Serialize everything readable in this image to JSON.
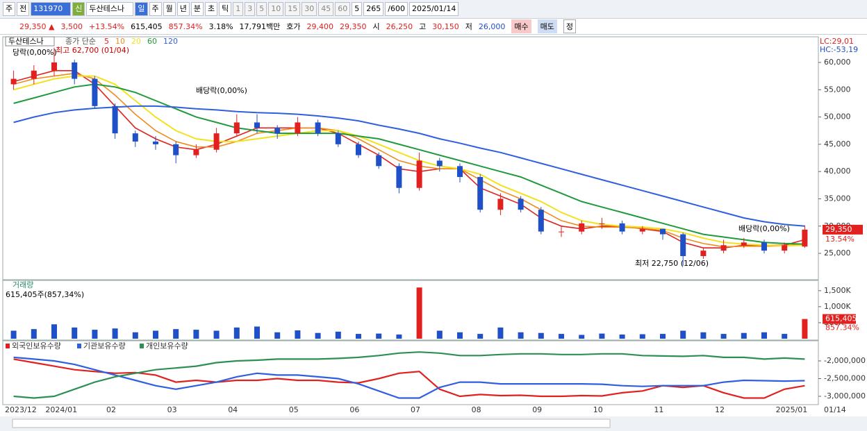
{
  "toolbar": [
    "주",
    "전",
    "131970",
    "신",
    "두산테스나",
    "일",
    "주",
    "월",
    "년",
    "분",
    "초",
    "틱",
    "1",
    "3",
    "5",
    "10",
    "15",
    "30",
    "45",
    "60",
    "5",
    "265",
    "/600",
    "2025/01/14"
  ],
  "info_bar": [
    "29,350 ▲",
    "3,500",
    "+13.54%",
    "615,405",
    "857.34%",
    "3.18%",
    "17,791백만",
    "호가",
    "29,400",
    "29,350",
    "시",
    "26,250",
    "고",
    "30,150",
    "저",
    "26,000",
    "매수",
    "매도",
    "정"
  ],
  "chart_data": [
    {
      "type": "candlestick",
      "title": "두산테스나",
      "legend_label": "종가 단순",
      "categories": [
        "2023/12",
        null,
        "2024/01",
        null,
        null,
        "02",
        null,
        null,
        "03",
        null,
        null,
        "04",
        null,
        null,
        "05",
        null,
        null,
        "06",
        null,
        null,
        "07",
        null,
        null,
        "08",
        null,
        null,
        "09",
        null,
        null,
        "10",
        null,
        null,
        "11",
        null,
        null,
        "12",
        null,
        null,
        "2025/01",
        null
      ],
      "x_end_label": "01/14",
      "open": [
        56000,
        57000,
        58500,
        60000,
        57000,
        52000,
        47000,
        45500,
        45000,
        43000,
        44000,
        47000,
        49000,
        48000,
        47000,
        49000,
        47000,
        45000,
        43000,
        41000,
        37000,
        42000,
        41000,
        39000,
        33000,
        35000,
        33000,
        29000,
        29000,
        30500,
        30500,
        29000,
        29500,
        28500,
        24500,
        25500,
        26500,
        27000,
        25500,
        26250
      ],
      "high": [
        58500,
        59500,
        62700,
        60500,
        57500,
        52500,
        47500,
        46500,
        45500,
        45000,
        48000,
        50500,
        50500,
        48500,
        50000,
        49500,
        47500,
        45500,
        43500,
        41500,
        43500,
        42500,
        41500,
        39500,
        36000,
        35500,
        33500,
        30000,
        31000,
        31500,
        31000,
        30000,
        29500,
        28800,
        26000,
        27500,
        27800,
        27500,
        27000,
        30150
      ],
      "low": [
        55000,
        56000,
        57500,
        56000,
        51500,
        46000,
        44500,
        44000,
        41500,
        42500,
        43500,
        46500,
        47000,
        46000,
        46500,
        46500,
        44500,
        42500,
        40500,
        36000,
        36500,
        40000,
        38000,
        32500,
        32000,
        32500,
        28500,
        28000,
        28500,
        29500,
        28500,
        28500,
        27500,
        22750,
        24000,
        25000,
        26000,
        25000,
        25000,
        26000
      ],
      "close": [
        57000,
        58500,
        60000,
        57000,
        52000,
        47000,
        45500,
        45000,
        43000,
        44000,
        47000,
        49000,
        48000,
        47000,
        49000,
        47000,
        45000,
        43000,
        41000,
        37000,
        42000,
        41000,
        39000,
        33000,
        35000,
        33000,
        29000,
        29000,
        30500,
        30500,
        29000,
        29500,
        28500,
        24500,
        25500,
        26500,
        27000,
        25500,
        26500,
        29350
      ],
      "up_color": "#e0211f",
      "down_color": "#1f50c8",
      "series": [
        {
          "name": "5",
          "color": "#e0211f",
          "values": [
            56500,
            57500,
            58500,
            58500,
            56000,
            52000,
            48000,
            46000,
            44500,
            44000,
            45000,
            46500,
            48000,
            48000,
            48000,
            48000,
            47000,
            45000,
            43000,
            40500,
            40000,
            40500,
            40500,
            37000,
            35500,
            34000,
            31500,
            30000,
            29500,
            30000,
            30000,
            29500,
            29000,
            27000,
            26000,
            26000,
            26500,
            26500,
            26500,
            27500
          ]
        },
        {
          "name": "10",
          "color": "#f08a1c",
          "values": [
            56000,
            57000,
            57500,
            58000,
            57000,
            54000,
            50500,
            47500,
            45500,
            44500,
            44500,
            45500,
            47000,
            47500,
            48000,
            48000,
            47500,
            46000,
            44000,
            42000,
            41000,
            40500,
            40500,
            38500,
            36500,
            35000,
            33000,
            31000,
            30000,
            29800,
            29800,
            29600,
            29200,
            27800,
            26800,
            26200,
            26300,
            26300,
            26400,
            26800
          ]
        },
        {
          "name": "20",
          "color": "#f2e21e",
          "values": [
            55000,
            56000,
            57000,
            57500,
            57500,
            56000,
            53000,
            50000,
            47500,
            46000,
            45500,
            45500,
            46000,
            46500,
            47000,
            47500,
            47500,
            46500,
            45000,
            43500,
            42000,
            41000,
            40500,
            39500,
            37500,
            36000,
            34500,
            32500,
            31000,
            30300,
            30000,
            29800,
            29500,
            28800,
            27800,
            27000,
            26700,
            26500,
            26400,
            26500
          ]
        },
        {
          "name": "60",
          "color": "#1f9a3c",
          "values": [
            52500,
            53500,
            54500,
            55500,
            56000,
            55500,
            54500,
            53000,
            51500,
            50000,
            49000,
            48000,
            47500,
            47000,
            47000,
            47000,
            47000,
            46500,
            46000,
            45000,
            44000,
            43000,
            42000,
            41000,
            40000,
            39000,
            37500,
            36000,
            34500,
            33500,
            32500,
            31500,
            30500,
            29500,
            28500,
            28000,
            27500,
            27000,
            26800,
            26700
          ]
        },
        {
          "name": "120",
          "color": "#2f5fe0",
          "values": [
            49000,
            50000,
            50800,
            51300,
            51600,
            51800,
            52000,
            52000,
            51800,
            51500,
            51300,
            51000,
            50800,
            50700,
            50500,
            50200,
            49800,
            49300,
            48500,
            47800,
            47000,
            46000,
            45200,
            44300,
            43500,
            42500,
            41500,
            40500,
            39500,
            38500,
            37500,
            36500,
            35500,
            34500,
            33500,
            32500,
            31500,
            30800,
            30300,
            30000
          ]
        }
      ],
      "ylim": [
        20300,
        64450
      ],
      "yticks": [
        {
          "value": 25000,
          "label": "25,000"
        },
        {
          "value": 30000,
          "label": "30,000"
        },
        {
          "value": 35000,
          "label": "35,000"
        },
        {
          "value": 40000,
          "label": "40,000"
        },
        {
          "value": 45000,
          "label": "45,000"
        },
        {
          "value": 50000,
          "label": "50,000"
        },
        {
          "value": 55000,
          "label": "55,000"
        },
        {
          "value": 60000,
          "label": "60,000"
        }
      ],
      "annotations": [
        "당락(0,00%)",
        "최고 62,700 (01/04)",
        "배당락(0,00%)",
        "배당락(0,00%)",
        "최저 22,750 (12/06)"
      ],
      "lc_label": "LC:29,01",
      "hc_label": "HC:-53,19",
      "price_tag": "29,350",
      "change_tag": "13.54%"
    },
    {
      "type": "bar",
      "title": "거래량",
      "subtitle": "615,405주(857,34%)",
      "color": "#1f50c8",
      "highlight_color": "#e0211f",
      "values": [
        250000,
        300000,
        450000,
        350000,
        280000,
        320000,
        200000,
        250000,
        300000,
        280000,
        250000,
        350000,
        380000,
        200000,
        260000,
        180000,
        220000,
        150000,
        160000,
        130000,
        1600000,
        250000,
        200000,
        150000,
        350000,
        200000,
        180000,
        150000,
        120000,
        160000,
        130000,
        140000,
        150000,
        250000,
        200000,
        150000,
        180000,
        200000,
        150000,
        615405
      ],
      "ylim": [
        0,
        1800000
      ],
      "yticks": [
        {
          "value": 500000,
          "label": "500K"
        },
        {
          "value": 1000000,
          "label": "1,000K"
        },
        {
          "value": 1500000,
          "label": "1,500K"
        }
      ],
      "value_tag": "615,405",
      "change_tag": "857.34%"
    },
    {
      "type": "line",
      "series": [
        {
          "name": "외국인보유수량",
          "color": "#e0211f",
          "values": [
            -1950000,
            -2050000,
            -2150000,
            -2250000,
            -2300000,
            -2350000,
            -2330000,
            -2400000,
            -2600000,
            -2550000,
            -2600000,
            -2550000,
            -2550000,
            -2500000,
            -2550000,
            -2550000,
            -2600000,
            -2620000,
            -2500000,
            -2350000,
            -2300000,
            -2800000,
            -3000000,
            -2950000,
            -2980000,
            -2970000,
            -3000000,
            -3000000,
            -2980000,
            -2990000,
            -2900000,
            -2850000,
            -2700000,
            -2750000,
            -2700000,
            -2900000,
            -3050000,
            -3050000,
            -2800000,
            -2700000
          ]
        },
        {
          "name": "기관보유수량",
          "color": "#2f5fe0",
          "values": [
            -1900000,
            -1950000,
            -2000000,
            -2100000,
            -2250000,
            -2400000,
            -2550000,
            -2700000,
            -2800000,
            -2700000,
            -2600000,
            -2450000,
            -2350000,
            -2400000,
            -2400000,
            -2450000,
            -2500000,
            -2650000,
            -2850000,
            -3050000,
            -3050000,
            -2750000,
            -2600000,
            -2600000,
            -2650000,
            -2650000,
            -2650000,
            -2650000,
            -2650000,
            -2660000,
            -2700000,
            -2720000,
            -2700000,
            -2700000,
            -2700000,
            -2600000,
            -2550000,
            -2560000,
            -2570000,
            -2560000
          ]
        },
        {
          "name": "개인보유수량",
          "color": "#2e8f55",
          "values": [
            -3000000,
            -3050000,
            -3000000,
            -2800000,
            -2600000,
            -2450000,
            -2350000,
            -2250000,
            -2200000,
            -2150000,
            -2050000,
            -2000000,
            -1980000,
            -1950000,
            -1950000,
            -1950000,
            -1930000,
            -1900000,
            -1850000,
            -1780000,
            -1750000,
            -1780000,
            -1850000,
            -1850000,
            -1820000,
            -1800000,
            -1800000,
            -1820000,
            -1820000,
            -1800000,
            -1800000,
            -1850000,
            -1860000,
            -1870000,
            -1850000,
            -1900000,
            -1900000,
            -1950000,
            -1920000,
            -1950000
          ]
        }
      ],
      "ylim": [
        -3216000,
        -1451000
      ],
      "yticks": [
        {
          "value": -3000000,
          "label": "-3,000,000"
        },
        {
          "value": -2500000,
          "label": "-2,500,000"
        },
        {
          "value": -2000000,
          "label": "-2,000,000"
        }
      ]
    }
  ]
}
